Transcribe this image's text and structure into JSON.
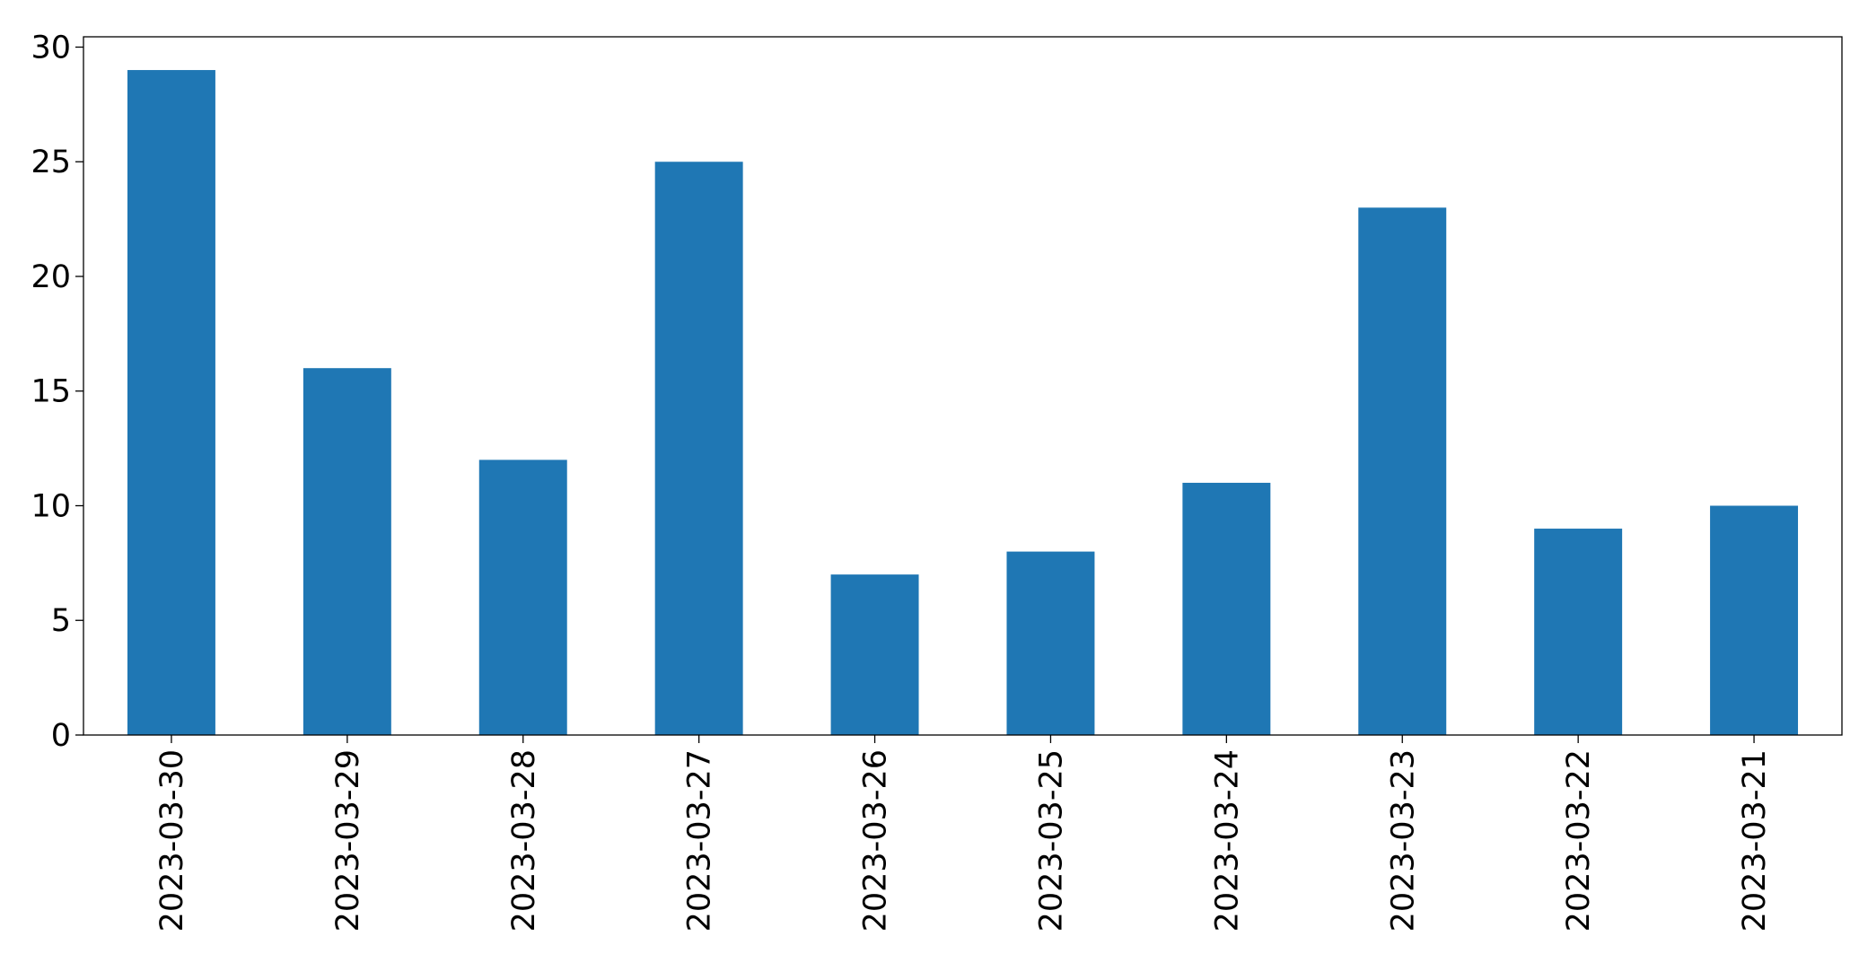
{
  "chart_data": {
    "type": "bar",
    "categories": [
      "2023-03-30",
      "2023-03-29",
      "2023-03-28",
      "2023-03-27",
      "2023-03-26",
      "2023-03-25",
      "2023-03-24",
      "2023-03-23",
      "2023-03-22",
      "2023-03-21"
    ],
    "values": [
      29,
      16,
      12,
      25,
      7,
      8,
      11,
      23,
      9,
      10
    ],
    "color": "#1f77b4",
    "ylim": [
      0,
      30.45
    ],
    "yticks": [
      0,
      5,
      10,
      15,
      20,
      25,
      30
    ],
    "grid": false
  }
}
